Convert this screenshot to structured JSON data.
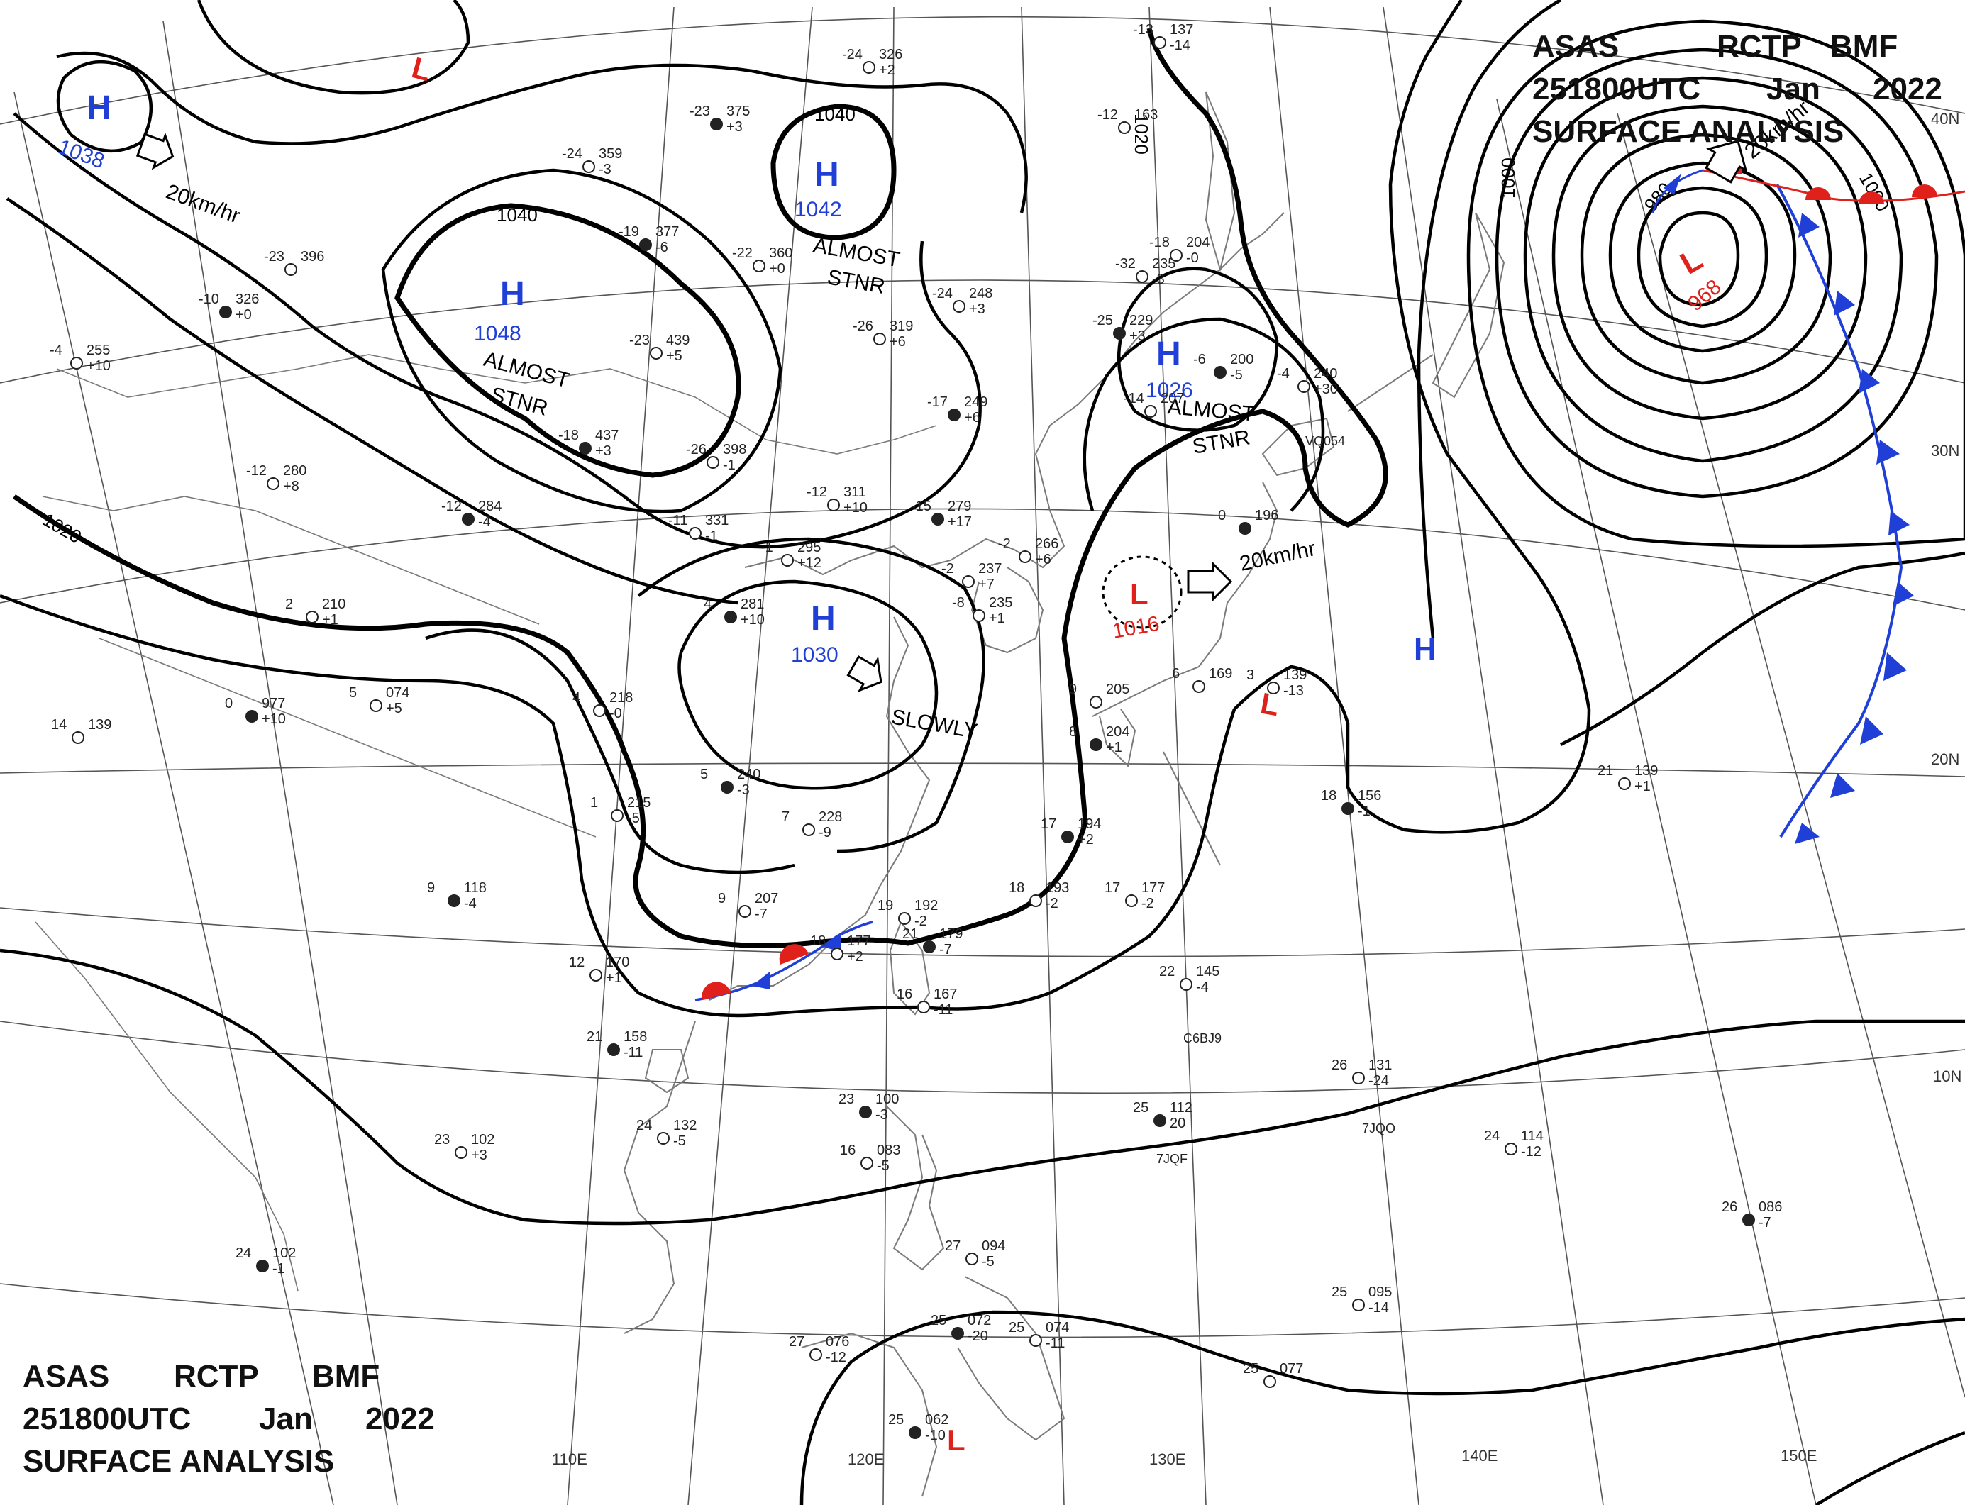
{
  "header": {
    "line1": [
      "ASAS",
      "RCTP",
      "BMF"
    ],
    "line2": [
      "251800UTC",
      "Jan",
      "2022"
    ],
    "line3": "SURFACE  ANALYSIS"
  },
  "footer": {
    "line1": [
      "ASAS",
      "RCTP",
      "BMF"
    ],
    "line2": [
      "251800UTC",
      "Jan",
      "2022"
    ],
    "line3": "SURFACE  ANALYSIS"
  },
  "colors": {
    "high": "#1f3fd6",
    "low": "#e0201a",
    "isobar": "#000000",
    "grid": "#555555",
    "coast": "#777777",
    "cold_front": "#1f3fd6",
    "warm_front": "#e0201a"
  },
  "longitude_labels": [
    "110E",
    "120E",
    "130E",
    "140E",
    "150E"
  ],
  "latitude_labels": [
    "40N",
    "30N",
    "20N",
    "10N"
  ],
  "isobar_labels": {
    "i1040_north": "1040",
    "i1040_mid": "1040",
    "i1020_left": "1020",
    "i1020_top": "1020",
    "i1000_a": "1000",
    "i1000_b": "1000",
    "i980": "980"
  },
  "pressure_centers": [
    {
      "type": "H",
      "value": "1038",
      "name": "high-1038"
    },
    {
      "type": "H",
      "value": "1042",
      "name": "high-1042"
    },
    {
      "type": "H",
      "value": "1048",
      "name": "high-1048"
    },
    {
      "type": "H",
      "value": "1030",
      "name": "high-1030"
    },
    {
      "type": "H",
      "value": "1026",
      "name": "high-1026"
    },
    {
      "type": "H",
      "value": "",
      "name": "high-east"
    },
    {
      "type": "L",
      "value": "1016",
      "name": "low-1016"
    },
    {
      "type": "L",
      "value": "968",
      "name": "low-968"
    },
    {
      "type": "L",
      "value": "",
      "name": "low-north"
    },
    {
      "type": "L",
      "value": "",
      "name": "low-ryukyu"
    },
    {
      "type": "L",
      "value": "",
      "name": "low-south"
    }
  ],
  "motion_labels": {
    "m1": "20km/hr",
    "m2": "ALMOST",
    "m2b": "STNR",
    "m3": "ALMOST",
    "m3b": "STNR",
    "m4": "SLOWLY",
    "m5": "ALMOST",
    "m5b": "STNR",
    "m6": "20km/hr",
    "m7": "20km/hr"
  },
  "stations": [
    {
      "t": "-23",
      "p": "375",
      "d": "+3"
    },
    {
      "t": "-24",
      "p": "326",
      "d": "+2"
    },
    {
      "t": "-24",
      "p": "359",
      "d": "-3"
    },
    {
      "t": "-19",
      "p": "377",
      "d": "-6"
    },
    {
      "t": "-22",
      "p": "360",
      "d": "+0"
    },
    {
      "t": "-23",
      "p": "396",
      "d": ""
    },
    {
      "t": "-10",
      "p": "326",
      "d": "+0"
    },
    {
      "t": "-4",
      "p": "255",
      "d": "+10"
    },
    {
      "t": "-23",
      "p": "439",
      "d": "+5"
    },
    {
      "t": "-18",
      "p": "437",
      "d": "+3"
    },
    {
      "t": "-26",
      "p": "398",
      "d": "-1"
    },
    {
      "t": "-12",
      "p": "280",
      "d": "+8"
    },
    {
      "t": "-12",
      "p": "284",
      "d": "-4"
    },
    {
      "t": "-11",
      "p": "331",
      "d": "-1"
    },
    {
      "t": "-12",
      "p": "311",
      "d": "+10"
    },
    {
      "t": "-15",
      "p": "279",
      "d": "+17"
    },
    {
      "t": "-24",
      "p": "248",
      "d": "+3"
    },
    {
      "t": "-26",
      "p": "319",
      "d": "+6"
    },
    {
      "t": "-17",
      "p": "249",
      "d": "+6"
    },
    {
      "t": "-1",
      "p": "295",
      "d": "+12"
    },
    {
      "t": "-2",
      "p": "266",
      "d": "+6"
    },
    {
      "t": "4",
      "p": "281",
      "d": "+10"
    },
    {
      "t": "2",
      "p": "210",
      "d": "+1"
    },
    {
      "t": "5",
      "p": "074",
      "d": "+5"
    },
    {
      "t": "0",
      "p": "977",
      "d": "+10"
    },
    {
      "t": "14",
      "p": "139",
      "d": ""
    },
    {
      "t": "4",
      "p": "218",
      "d": "-0"
    },
    {
      "t": "5",
      "p": "240",
      "d": "-3"
    },
    {
      "t": "1",
      "p": "215",
      "d": "-5"
    },
    {
      "t": "7",
      "p": "228",
      "d": "-9"
    },
    {
      "t": "9",
      "p": "118",
      "d": "-4"
    },
    {
      "t": "9",
      "p": "207",
      "d": "-7"
    },
    {
      "t": "12",
      "p": "170",
      "d": "+1"
    },
    {
      "t": "21",
      "p": "158",
      "d": "-11"
    },
    {
      "t": "24",
      "p": "132",
      "d": "-5"
    },
    {
      "t": "23",
      "p": "102",
      "d": "+3"
    },
    {
      "t": "24",
      "p": "102",
      "d": "-1"
    },
    {
      "t": "18",
      "p": "177",
      "d": "+2"
    },
    {
      "t": "19",
      "p": "192",
      "d": "-2"
    },
    {
      "t": "21",
      "p": "179",
      "d": "-7"
    },
    {
      "t": "16",
      "p": "167",
      "d": "-11"
    },
    {
      "t": "18",
      "p": "193",
      "d": "-2"
    },
    {
      "t": "17",
      "p": "194",
      "d": "+2"
    },
    {
      "t": "17",
      "p": "177",
      "d": "-2"
    },
    {
      "t": "9",
      "p": "205",
      "d": ""
    },
    {
      "t": "8",
      "p": "204",
      "d": "+1"
    },
    {
      "t": "-2",
      "p": "237",
      "d": "+7"
    },
    {
      "t": "-8",
      "p": "235",
      "d": "+1"
    },
    {
      "t": "-25",
      "p": "229",
      "d": "+3"
    },
    {
      "t": "-32",
      "p": "235",
      "d": "-3"
    },
    {
      "t": "-18",
      "p": "204",
      "d": "-0"
    },
    {
      "t": "-6",
      "p": "200",
      "d": "-5"
    },
    {
      "t": "-4",
      "p": "240",
      "d": "+30"
    },
    {
      "t": "-14",
      "p": "207",
      "d": ""
    },
    {
      "t": "0",
      "p": "196",
      "d": ""
    },
    {
      "t": "6",
      "p": "169",
      "d": ""
    },
    {
      "t": "3",
      "p": "139",
      "d": "-13"
    },
    {
      "t": "18",
      "p": "156",
      "d": "-1"
    },
    {
      "t": "21",
      "p": "139",
      "d": "+1"
    },
    {
      "t": "22",
      "p": "145",
      "d": "-4"
    },
    {
      "t": "25",
      "p": "112",
      "d": "20"
    },
    {
      "t": "26",
      "p": "131",
      "d": "-24"
    },
    {
      "t": "24",
      "p": "114",
      "d": "-12"
    },
    {
      "t": "23",
      "p": "100",
      "d": "-3"
    },
    {
      "t": "16",
      "p": "083",
      "d": "-5"
    },
    {
      "t": "27",
      "p": "094",
      "d": "-5"
    },
    {
      "t": "26",
      "p": "086",
      "d": "-7"
    },
    {
      "t": "25",
      "p": "095",
      "d": "-14"
    },
    {
      "t": "27",
      "p": "076",
      "d": "-12"
    },
    {
      "t": "25",
      "p": "072",
      "d": "-20"
    },
    {
      "t": "25",
      "p": "074",
      "d": "-11"
    },
    {
      "t": "25",
      "p": "077",
      "d": ""
    },
    {
      "t": "25",
      "p": "062",
      "d": "-10"
    },
    {
      "t": "-12",
      "p": "163",
      "d": ""
    },
    {
      "t": "-13",
      "p": "137",
      "d": "-14"
    }
  ],
  "call_signs": [
    "VQ054",
    "C6BJ9",
    "7JQF",
    "7JQO"
  ]
}
